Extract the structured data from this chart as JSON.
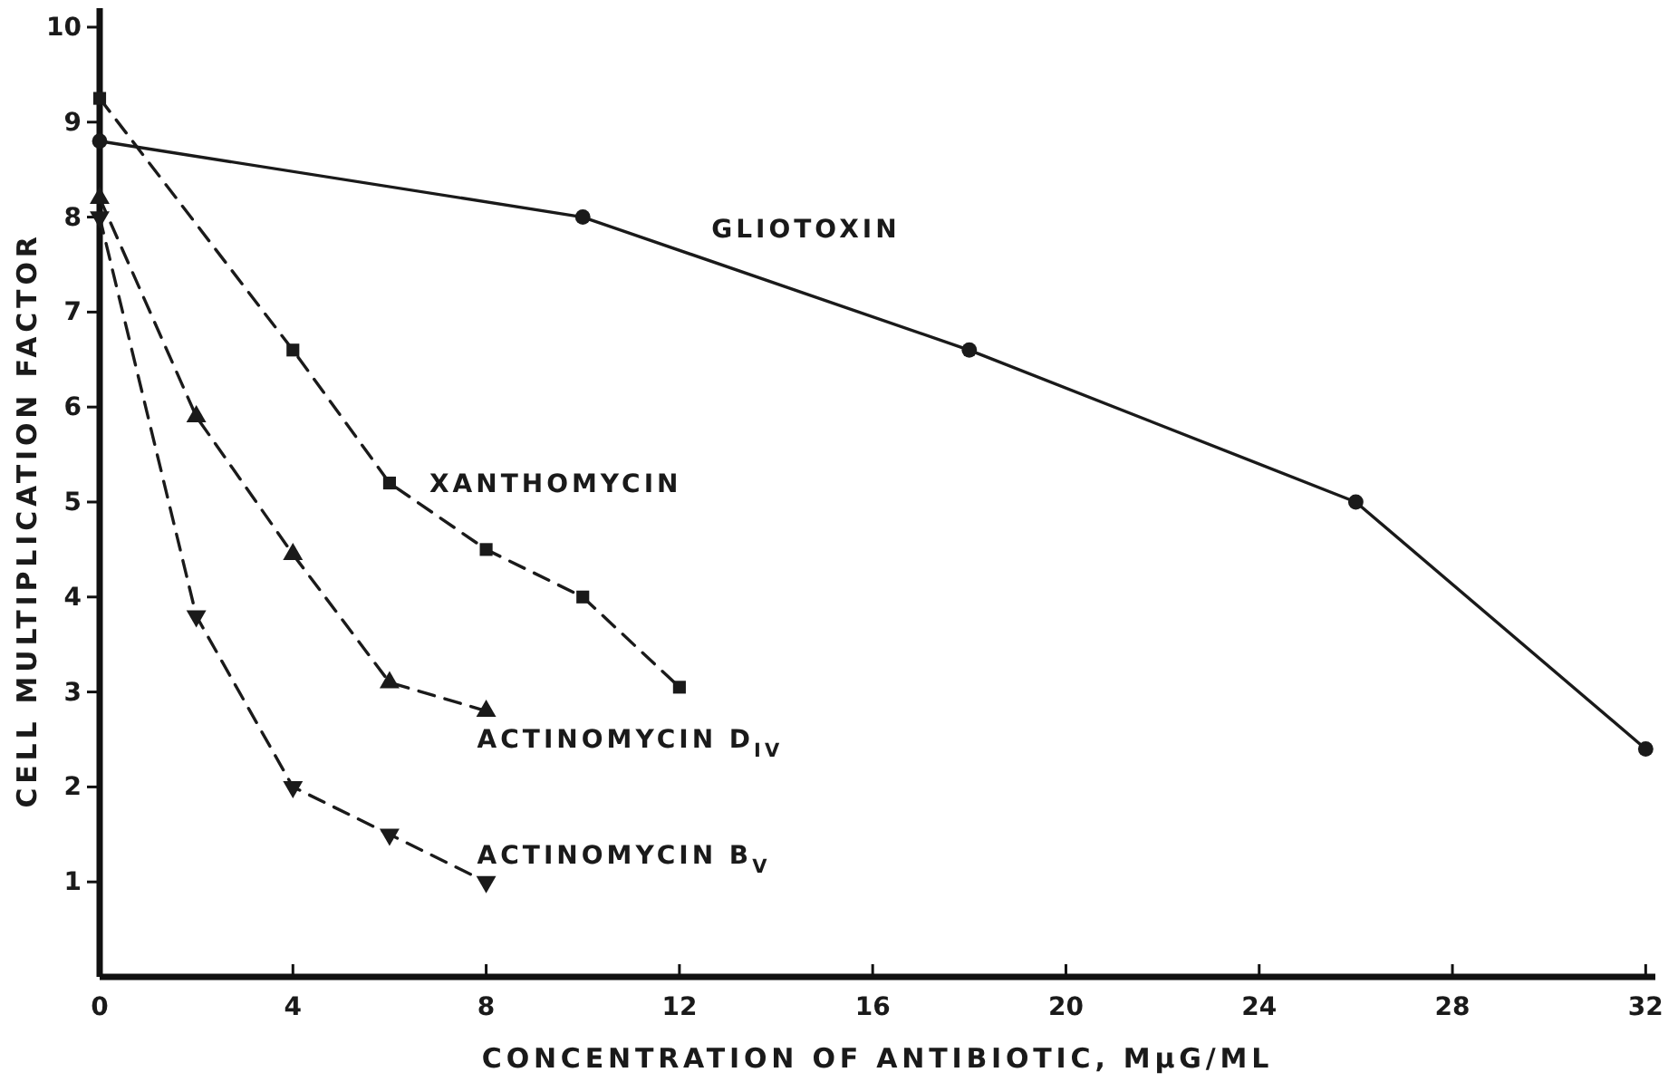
{
  "chart_data": {
    "type": "line",
    "xlabel": "CONCENTRATION OF ANTIBIOTIC, MμG/ML",
    "ylabel": "CELL MULTIPLICATION FACTOR",
    "xlim": [
      0,
      32.2
    ],
    "ylim": [
      0,
      10.2
    ],
    "xticks": [
      0,
      4,
      8,
      12,
      16,
      20,
      24,
      28,
      32
    ],
    "yticks": [
      1,
      2,
      3,
      4,
      5,
      6,
      7,
      8,
      9,
      10
    ],
    "series": [
      {
        "name": "GLIOTOXIN",
        "color": "#1a1a1a",
        "x": [
          0,
          10,
          18,
          26,
          32
        ],
        "values": [
          8.8,
          8.0,
          6.6,
          5.0,
          2.4
        ],
        "marker": "circle",
        "line_style": "solid"
      },
      {
        "name": "XANTHOMYCIN",
        "color": "#1a1a1a",
        "x": [
          0,
          4,
          6,
          8,
          10,
          12
        ],
        "values": [
          9.25,
          6.6,
          5.2,
          4.5,
          4.0,
          3.05
        ],
        "marker": "square",
        "line_style": "dashed"
      },
      {
        "name": "ACTINOMYCIN D$_{IV}$",
        "color": "#1a1a1a",
        "x": [
          0,
          2,
          4,
          6,
          8
        ],
        "values": [
          8.2,
          5.9,
          4.45,
          3.1,
          2.8
        ],
        "marker": "triangle",
        "line_style": "dashed"
      },
      {
        "name": "ACTINOMYCIN B$_{V}$",
        "color": "#1a1a1a",
        "x": [
          0,
          2,
          4,
          6,
          8
        ],
        "values": [
          8.0,
          3.8,
          2.0,
          1.5,
          1.0
        ],
        "marker": "triangle-down",
        "line_style": "dashed"
      }
    ]
  }
}
